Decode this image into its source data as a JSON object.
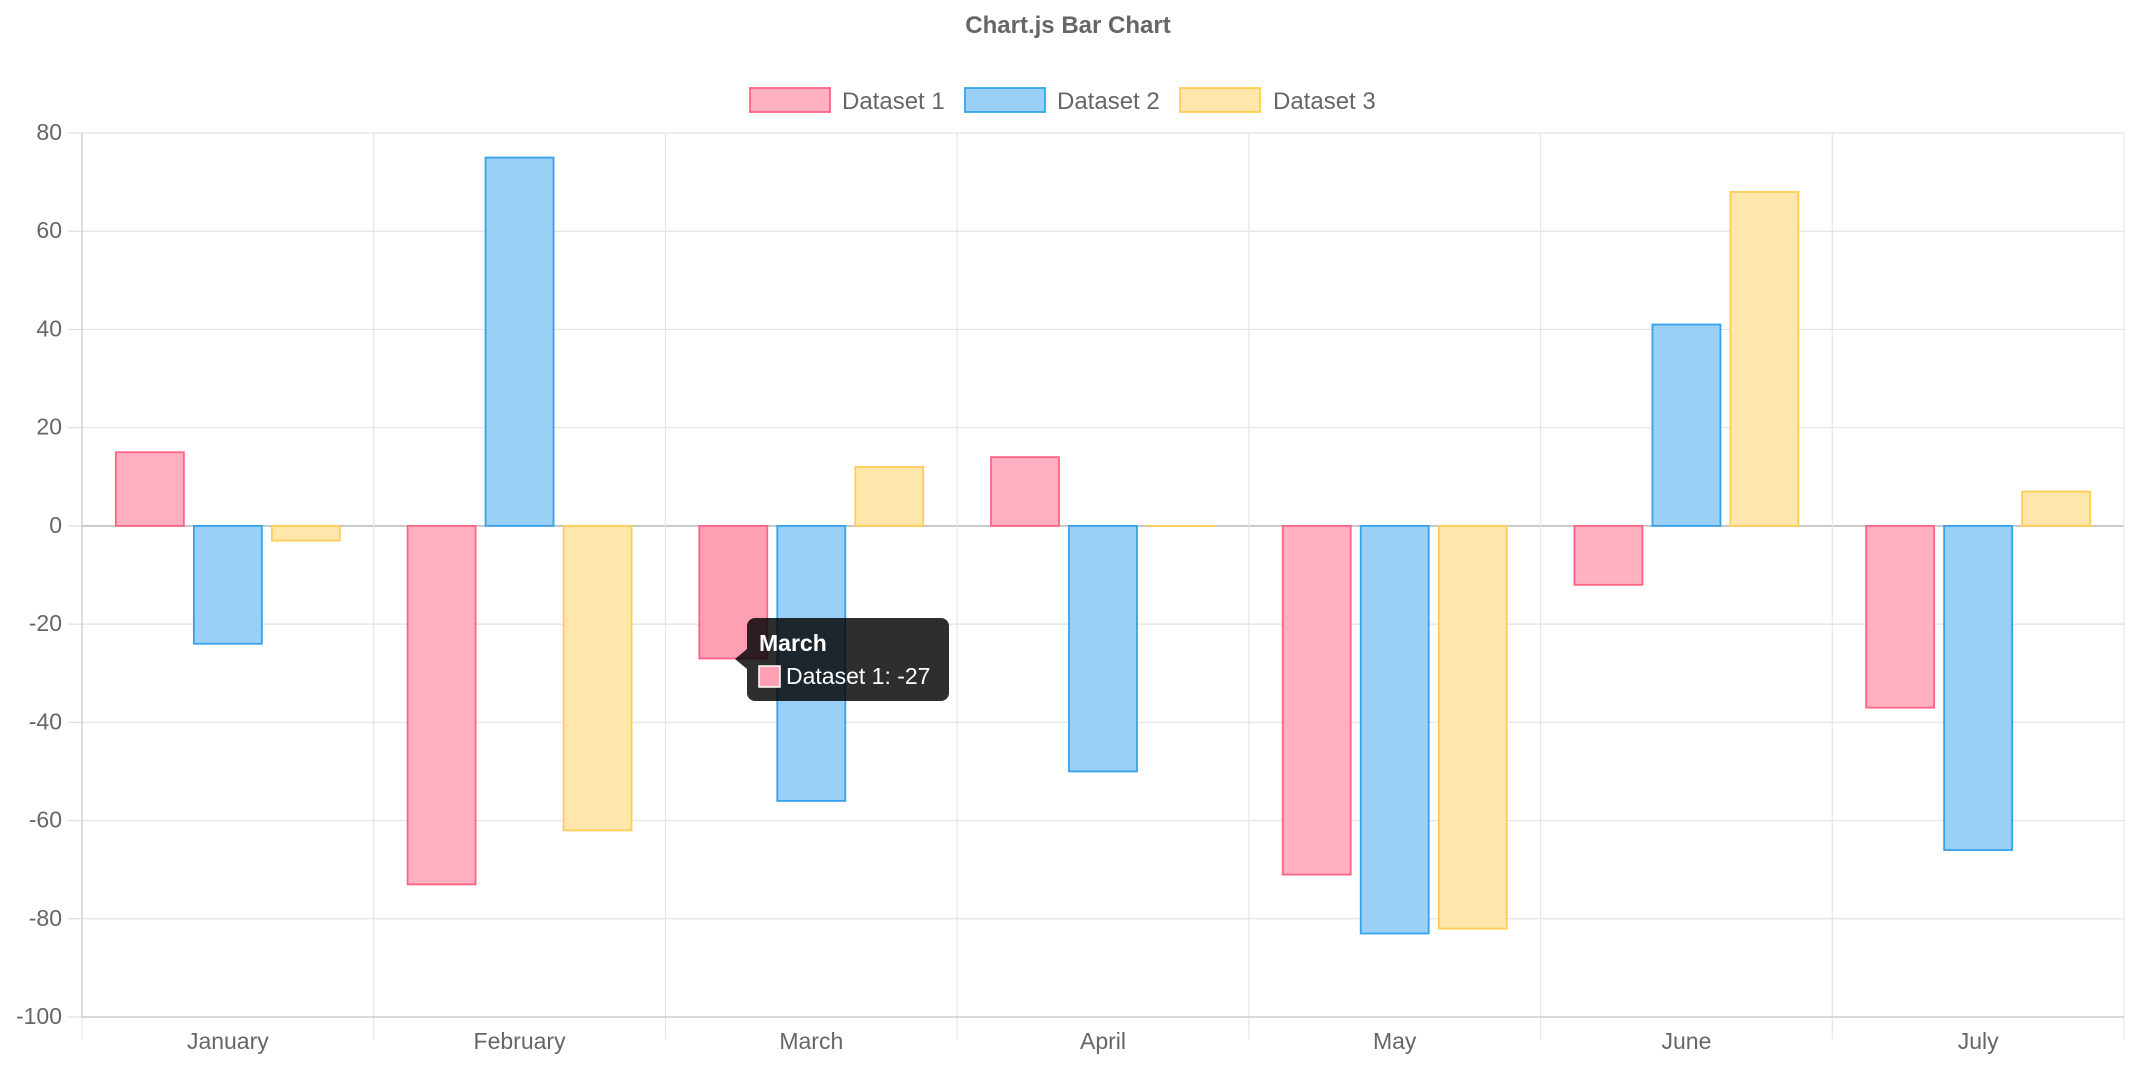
{
  "chart_data": {
    "type": "bar",
    "title": "Chart.js Bar Chart",
    "categories": [
      "January",
      "February",
      "March",
      "April",
      "May",
      "June",
      "July"
    ],
    "ylim": [
      -100,
      80
    ],
    "yticks": [
      "80",
      "60",
      "40",
      "20",
      "0",
      "-20",
      "-40",
      "-60",
      "-80",
      "-100"
    ],
    "grid": true,
    "legend_position": "top",
    "series": [
      {
        "name": "Dataset 1",
        "values": [
          15,
          -73,
          -27,
          14,
          -71,
          -12,
          -37
        ],
        "fill": "#ffb0c1",
        "hover_fill": "#ff9fb3",
        "stroke": "#ff6384"
      },
      {
        "name": "Dataset 2",
        "values": [
          -24,
          75,
          -56,
          -50,
          -83,
          41,
          -66
        ],
        "fill": "#9ad0f5",
        "hover_fill": "#7fccff",
        "stroke": "#36a2eb"
      },
      {
        "name": "Dataset 3",
        "values": [
          -3,
          -62,
          12,
          0,
          -82,
          68,
          7
        ],
        "fill": "#ffe6aa",
        "hover_fill": "#ffe29a",
        "stroke": "#ffcd56"
      }
    ],
    "active_category_index": 2,
    "tooltip": {
      "title": "March",
      "label": "Dataset 1: -27",
      "color": "#ff9fb3",
      "border": "#ff6384"
    }
  }
}
